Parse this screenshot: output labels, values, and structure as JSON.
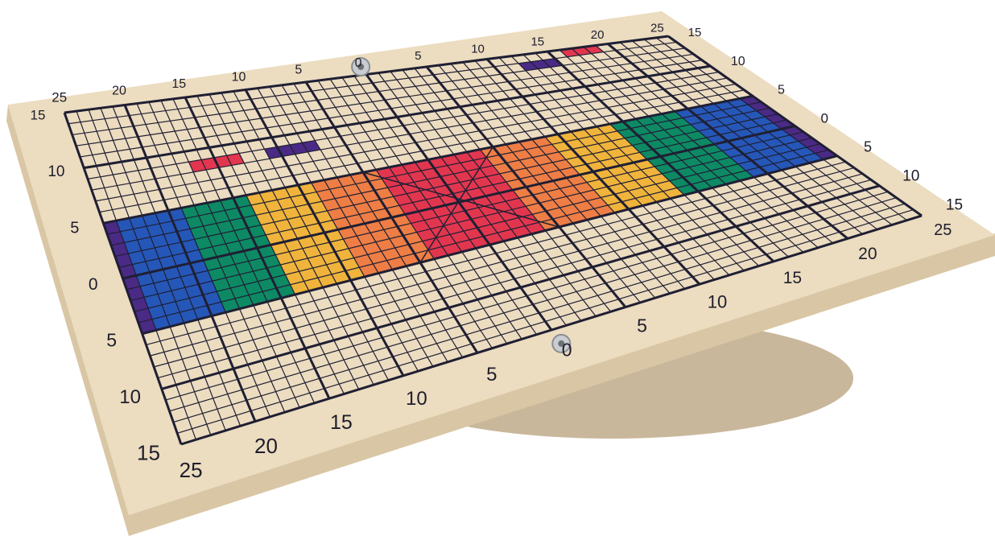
{
  "board": {
    "top_scale": [
      "25",
      "20",
      "15",
      "10",
      "5",
      "0",
      "5",
      "10",
      "15",
      "20",
      "25"
    ],
    "bottom_scale": [
      "25",
      "20",
      "15",
      "10",
      "5",
      "0",
      "5",
      "10",
      "15",
      "20",
      "25"
    ],
    "left_scale": [
      "15",
      "10",
      "5",
      "0",
      "5",
      "10",
      "15"
    ],
    "right_scale": [
      "15",
      "10",
      "5",
      "0",
      "5",
      "10",
      "15"
    ]
  }
}
